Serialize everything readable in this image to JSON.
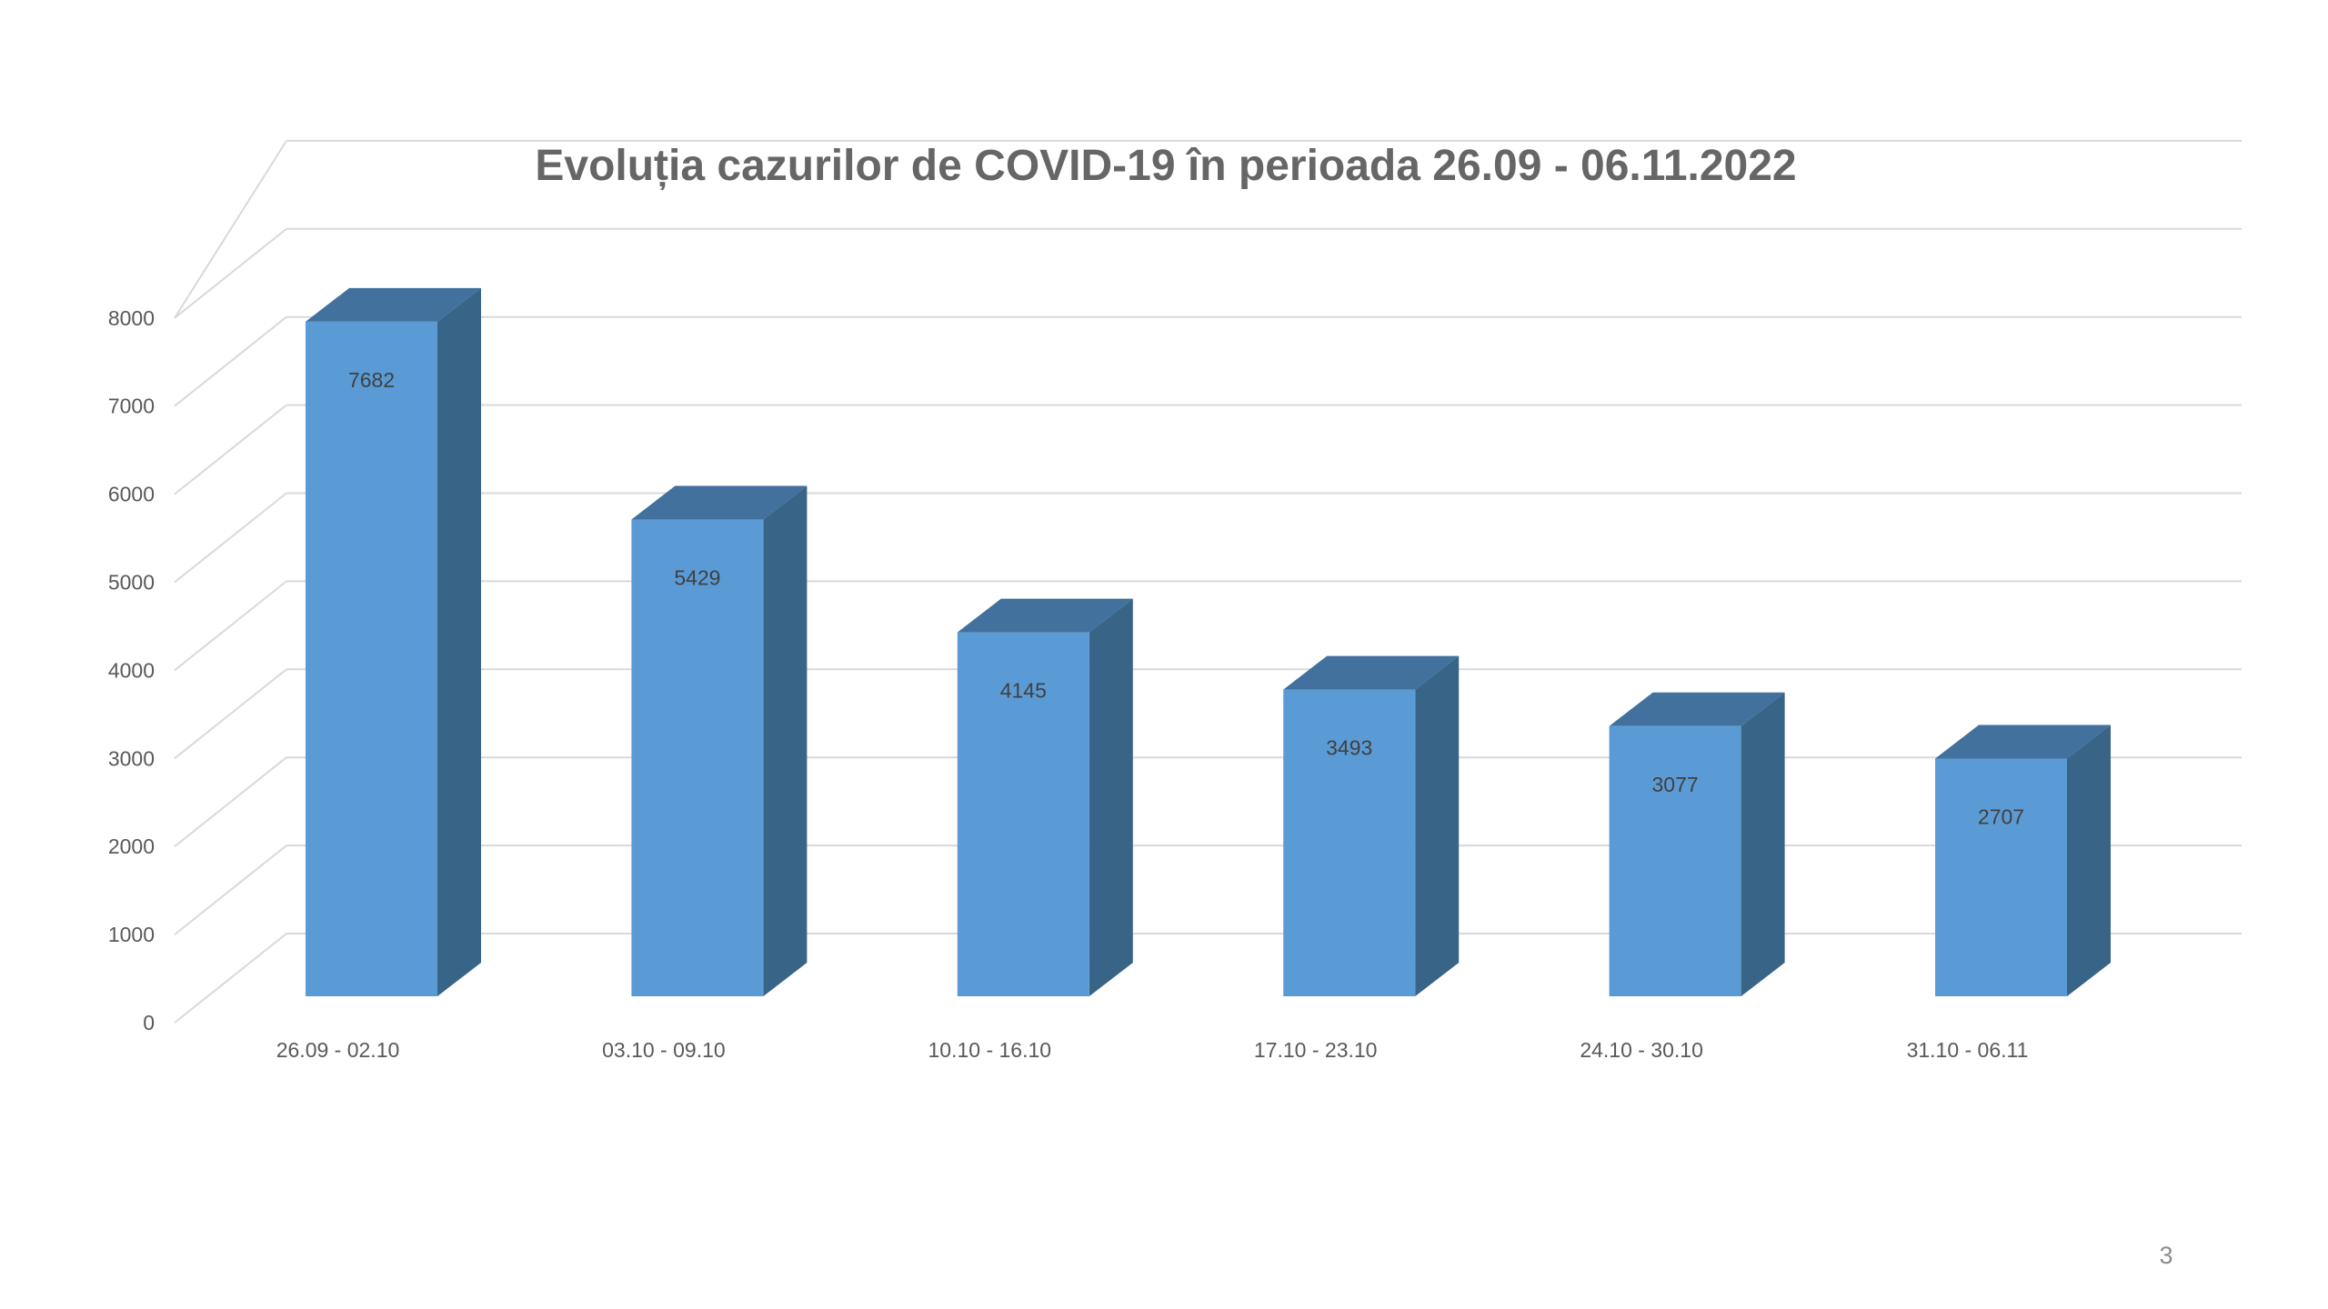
{
  "chart_data": {
    "type": "bar",
    "title": "Evoluția cazurilor de COVID-19 în perioada 26.09 - 06.11.2022",
    "categories": [
      "26.09 - 02.10",
      "03.10 - 09.10",
      "10.10 - 16.10",
      "17.10 - 23.10",
      "24.10 - 30.10",
      "31.10 - 06.11"
    ],
    "values": [
      7682,
      5429,
      4145,
      3493,
      3077,
      2707
    ],
    "yticks": [
      "0",
      "1000",
      "2000",
      "3000",
      "4000",
      "5000",
      "6000",
      "7000",
      "8000"
    ],
    "ylim": [
      0,
      8000
    ],
    "grid": true,
    "data_labels": true,
    "colors": {
      "front": "#5b9bd5",
      "side": "#386487",
      "top": "#41719c",
      "grid": "#d9d9d9"
    }
  },
  "page_number": "3"
}
